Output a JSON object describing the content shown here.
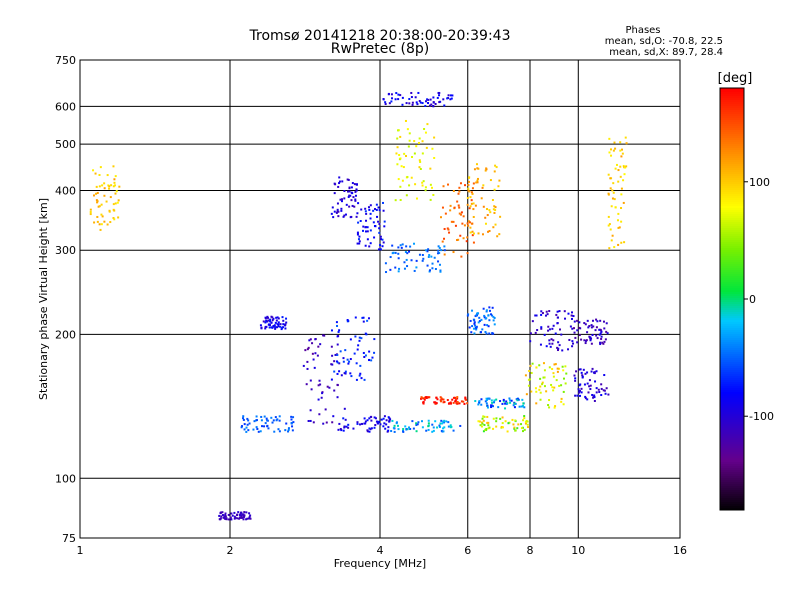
{
  "chart_data": {
    "type": "scatter",
    "title": "Tromsø 20141218 20:38:00-20:39:43",
    "subtitle": "RwPretec (8p)",
    "xlabel": "Frequency [MHz]",
    "ylabel": "Stationary phase Virtual Height [km]",
    "x_scale": "log",
    "y_scale": "log",
    "xlim": [
      1,
      16
    ],
    "ylim": [
      75,
      750
    ],
    "x_ticks": [
      1,
      2,
      4,
      6,
      8,
      10,
      16
    ],
    "y_ticks": [
      75,
      100,
      200,
      300,
      400,
      500,
      600,
      750
    ],
    "grid": true,
    "phases_box": {
      "heading": "Phases",
      "line1": "mean, sd,O: -70.8, 22.5",
      "line2": "mean, sd,X:  89.7, 28.4"
    },
    "colorbar": {
      "label": "[deg]",
      "range": [
        -180,
        180
      ],
      "ticks": [
        100,
        0,
        -100
      ],
      "colormap": "rainbow"
    },
    "series": [
      {
        "x": [
          1.05,
          1.2
        ],
        "y": [
          330,
          450
        ],
        "phase": 100,
        "spread": 20
      },
      {
        "x": [
          3.2,
          3.6
        ],
        "y": [
          350,
          430
        ],
        "phase": -100,
        "spread": 15
      },
      {
        "x": [
          3.6,
          4.1
        ],
        "y": [
          300,
          380
        ],
        "phase": -80,
        "spread": 20
      },
      {
        "x": [
          4.1,
          5.4
        ],
        "y": [
          270,
          310
        ],
        "phase": -50,
        "spread": 20
      },
      {
        "x": [
          4.3,
          5.2
        ],
        "y": [
          380,
          560
        ],
        "phase": 80,
        "spread": 20
      },
      {
        "x": [
          5.3,
          6.2
        ],
        "y": [
          290,
          420
        ],
        "phase": 140,
        "spread": 20
      },
      {
        "x": [
          6.0,
          7.0
        ],
        "y": [
          320,
          460
        ],
        "phase": 110,
        "spread": 20
      },
      {
        "x": [
          2.8,
          3.4
        ],
        "y": [
          130,
          200
        ],
        "phase": -110,
        "spread": 20
      },
      {
        "x": [
          3.2,
          3.9
        ],
        "y": [
          160,
          220
        ],
        "phase": -70,
        "spread": 20
      },
      {
        "x": [
          2.1,
          2.7
        ],
        "y": [
          125,
          135
        ],
        "phase": -50,
        "spread": 15
      },
      {
        "x": [
          3.3,
          4.3
        ],
        "y": [
          125,
          135
        ],
        "phase": -90,
        "spread": 20
      },
      {
        "x": [
          4.2,
          5.8
        ],
        "y": [
          125,
          132
        ],
        "phase": -30,
        "spread": 30
      },
      {
        "x": [
          4.8,
          6.0
        ],
        "y": [
          143,
          148
        ],
        "phase": 170,
        "spread": 30
      },
      {
        "x": [
          6.2,
          7.8
        ],
        "y": [
          140,
          147
        ],
        "phase": -40,
        "spread": 40
      },
      {
        "x": [
          7.8,
          9.5
        ],
        "y": [
          140,
          175
        ],
        "phase": 80,
        "spread": 40
      },
      {
        "x": [
          8.0,
          9.8
        ],
        "y": [
          185,
          225
        ],
        "phase": -100,
        "spread": 20
      },
      {
        "x": [
          9.8,
          11.5
        ],
        "y": [
          190,
          215
        ],
        "phase": -110,
        "spread": 20
      },
      {
        "x": [
          9.8,
          11.5
        ],
        "y": [
          145,
          170
        ],
        "phase": -100,
        "spread": 20
      },
      {
        "x": [
          6.3,
          8.0
        ],
        "y": [
          125,
          135
        ],
        "phase": 60,
        "spread": 50
      },
      {
        "x": [
          4.0,
          5.6
        ],
        "y": [
          600,
          640
        ],
        "phase": -90,
        "spread": 20
      },
      {
        "x": [
          2.3,
          2.6
        ],
        "y": [
          205,
          218
        ],
        "phase": -90,
        "spread": 20
      },
      {
        "x": [
          1.9,
          2.2
        ],
        "y": [
          82,
          85
        ],
        "phase": -110,
        "spread": 10
      },
      {
        "x": [
          6.0,
          6.8
        ],
        "y": [
          200,
          230
        ],
        "phase": -50,
        "spread": 20
      },
      {
        "x": [
          11.5,
          12.5
        ],
        "y": [
          300,
          520
        ],
        "phase": 100,
        "spread": 20
      }
    ]
  }
}
